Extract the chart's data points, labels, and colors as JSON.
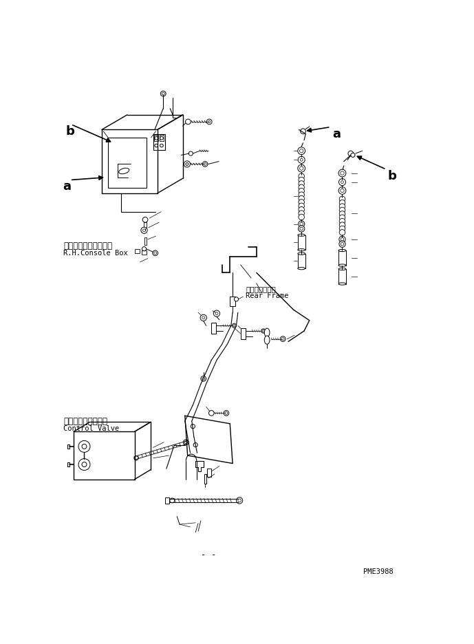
{
  "bg_color": "#ffffff",
  "line_color": "#000000",
  "fig_width": 6.89,
  "fig_height": 9.37,
  "dpi": 100,
  "label_console_jp": "右コンソールボックス",
  "label_console_en": "R.H.Console Box",
  "label_rear_jp": "リヤーフレーム",
  "label_rear_en": "Rear Frame",
  "label_valve_jp": "コントロールバルブ",
  "label_valve_en": "Control Valve",
  "label_pme": "PME3988",
  "label_a": "a",
  "label_b": "b"
}
